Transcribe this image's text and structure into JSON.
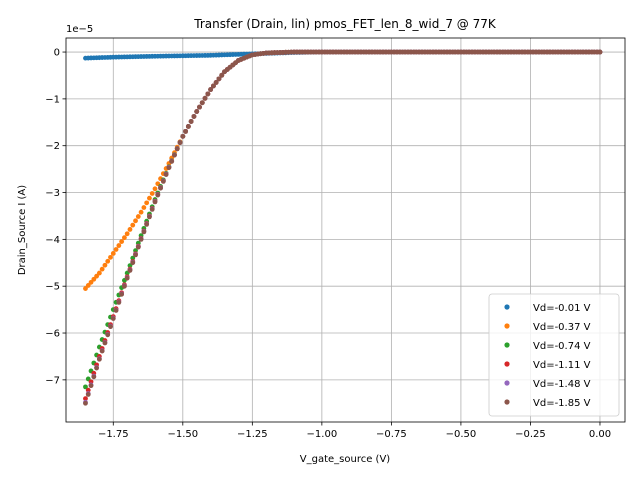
{
  "chart_data": {
    "type": "scatter",
    "title": "Transfer (Drain, lin) pmos_FET_len_8_wid_7 @ 77K",
    "xlabel": "V_gate_source (V)",
    "ylabel": "Drain_Source I (A)",
    "offset_text": "1e−5",
    "xlim": [
      -1.92,
      0.09
    ],
    "ylim": [
      -7.9,
      0.3
    ],
    "xticks": [
      -1.75,
      -1.5,
      -1.25,
      -1.0,
      -0.75,
      -0.5,
      -0.25,
      0.0
    ],
    "xtick_labels": [
      "−1.75",
      "−1.50",
      "−1.25",
      "−1.00",
      "−0.75",
      "−0.50",
      "−0.25",
      "0.00"
    ],
    "yticks": [
      0,
      -1,
      -2,
      -3,
      -4,
      -5,
      -6,
      -7
    ],
    "ytick_labels": [
      "0",
      "−1",
      "−2",
      "−3",
      "−4",
      "−5",
      "−6",
      "−7"
    ],
    "y_scale_factor": "1e-5",
    "grid": true,
    "legend_position": "lower-right",
    "x_range": [
      -1.85,
      0.0
    ],
    "series": [
      {
        "name": "Vd=-0.01 V",
        "color": "#1f77b4",
        "points": [
          [
            -1.85,
            -0.13
          ],
          [
            -1.75,
            -0.11
          ],
          [
            -1.6,
            -0.09
          ],
          [
            -1.4,
            -0.07
          ],
          [
            -1.25,
            -0.04
          ],
          [
            -1.1,
            -0.01
          ],
          [
            -1.0,
            0.0
          ],
          [
            0.0,
            0.0
          ]
        ]
      },
      {
        "name": "Vd=-0.37 V",
        "color": "#ff7f0e",
        "points": [
          [
            -1.85,
            -5.05
          ],
          [
            -1.8,
            -4.72
          ],
          [
            -1.75,
            -4.3
          ],
          [
            -1.7,
            -3.88
          ],
          [
            -1.65,
            -3.42
          ],
          [
            -1.6,
            -2.92
          ],
          [
            -1.55,
            -2.38
          ],
          [
            -1.5,
            -1.8
          ],
          [
            -1.45,
            -1.27
          ],
          [
            -1.4,
            -0.8
          ],
          [
            -1.35,
            -0.42
          ],
          [
            -1.3,
            -0.18
          ],
          [
            -1.25,
            -0.06
          ],
          [
            -1.2,
            -0.02
          ],
          [
            -1.1,
            0.0
          ],
          [
            0.0,
            0.0
          ]
        ]
      },
      {
        "name": "Vd=-0.74 V",
        "color": "#2ca02c",
        "points": [
          [
            -1.85,
            -7.15
          ],
          [
            -1.8,
            -6.3
          ],
          [
            -1.75,
            -5.5
          ],
          [
            -1.7,
            -4.72
          ],
          [
            -1.65,
            -3.92
          ],
          [
            -1.6,
            -3.15
          ],
          [
            -1.55,
            -2.45
          ],
          [
            -1.5,
            -1.8
          ],
          [
            -1.45,
            -1.27
          ],
          [
            -1.4,
            -0.8
          ],
          [
            -1.35,
            -0.42
          ],
          [
            -1.3,
            -0.18
          ],
          [
            -1.25,
            -0.06
          ],
          [
            -1.2,
            -0.02
          ],
          [
            -1.1,
            0.0
          ],
          [
            0.0,
            0.0
          ]
        ]
      },
      {
        "name": "Vd=-1.11 V",
        "color": "#d62728",
        "points": [
          [
            -1.85,
            -7.4
          ],
          [
            -1.8,
            -6.5
          ],
          [
            -1.75,
            -5.65
          ],
          [
            -1.7,
            -4.8
          ],
          [
            -1.65,
            -3.98
          ],
          [
            -1.6,
            -3.18
          ],
          [
            -1.55,
            -2.46
          ],
          [
            -1.5,
            -1.8
          ],
          [
            -1.45,
            -1.27
          ],
          [
            -1.4,
            -0.8
          ],
          [
            -1.35,
            -0.42
          ],
          [
            -1.3,
            -0.18
          ],
          [
            -1.25,
            -0.06
          ],
          [
            -1.2,
            -0.02
          ],
          [
            -1.1,
            0.0
          ],
          [
            0.0,
            0.0
          ]
        ]
      },
      {
        "name": "Vd=-1.48 V",
        "color": "#9467bd",
        "points": [
          [
            -1.85,
            -7.48
          ],
          [
            -1.8,
            -6.55
          ],
          [
            -1.75,
            -5.68
          ],
          [
            -1.7,
            -4.82
          ],
          [
            -1.65,
            -3.99
          ],
          [
            -1.6,
            -3.19
          ],
          [
            -1.55,
            -2.46
          ],
          [
            -1.5,
            -1.8
          ],
          [
            -1.45,
            -1.27
          ],
          [
            -1.4,
            -0.8
          ],
          [
            -1.35,
            -0.42
          ],
          [
            -1.3,
            -0.18
          ],
          [
            -1.25,
            -0.06
          ],
          [
            -1.2,
            -0.02
          ],
          [
            -1.1,
            0.0
          ],
          [
            0.0,
            0.0
          ]
        ]
      },
      {
        "name": "Vd=-1.85 V",
        "color": "#8c564b",
        "points": [
          [
            -1.85,
            -7.5
          ],
          [
            -1.8,
            -6.56
          ],
          [
            -1.75,
            -5.69
          ],
          [
            -1.7,
            -4.83
          ],
          [
            -1.65,
            -4.0
          ],
          [
            -1.6,
            -3.2
          ],
          [
            -1.55,
            -2.47
          ],
          [
            -1.5,
            -1.8
          ],
          [
            -1.45,
            -1.27
          ],
          [
            -1.4,
            -0.8
          ],
          [
            -1.35,
            -0.42
          ],
          [
            -1.3,
            -0.18
          ],
          [
            -1.25,
            -0.06
          ],
          [
            -1.2,
            -0.02
          ],
          [
            -1.1,
            0.0
          ],
          [
            0.0,
            0.0
          ]
        ]
      }
    ]
  }
}
